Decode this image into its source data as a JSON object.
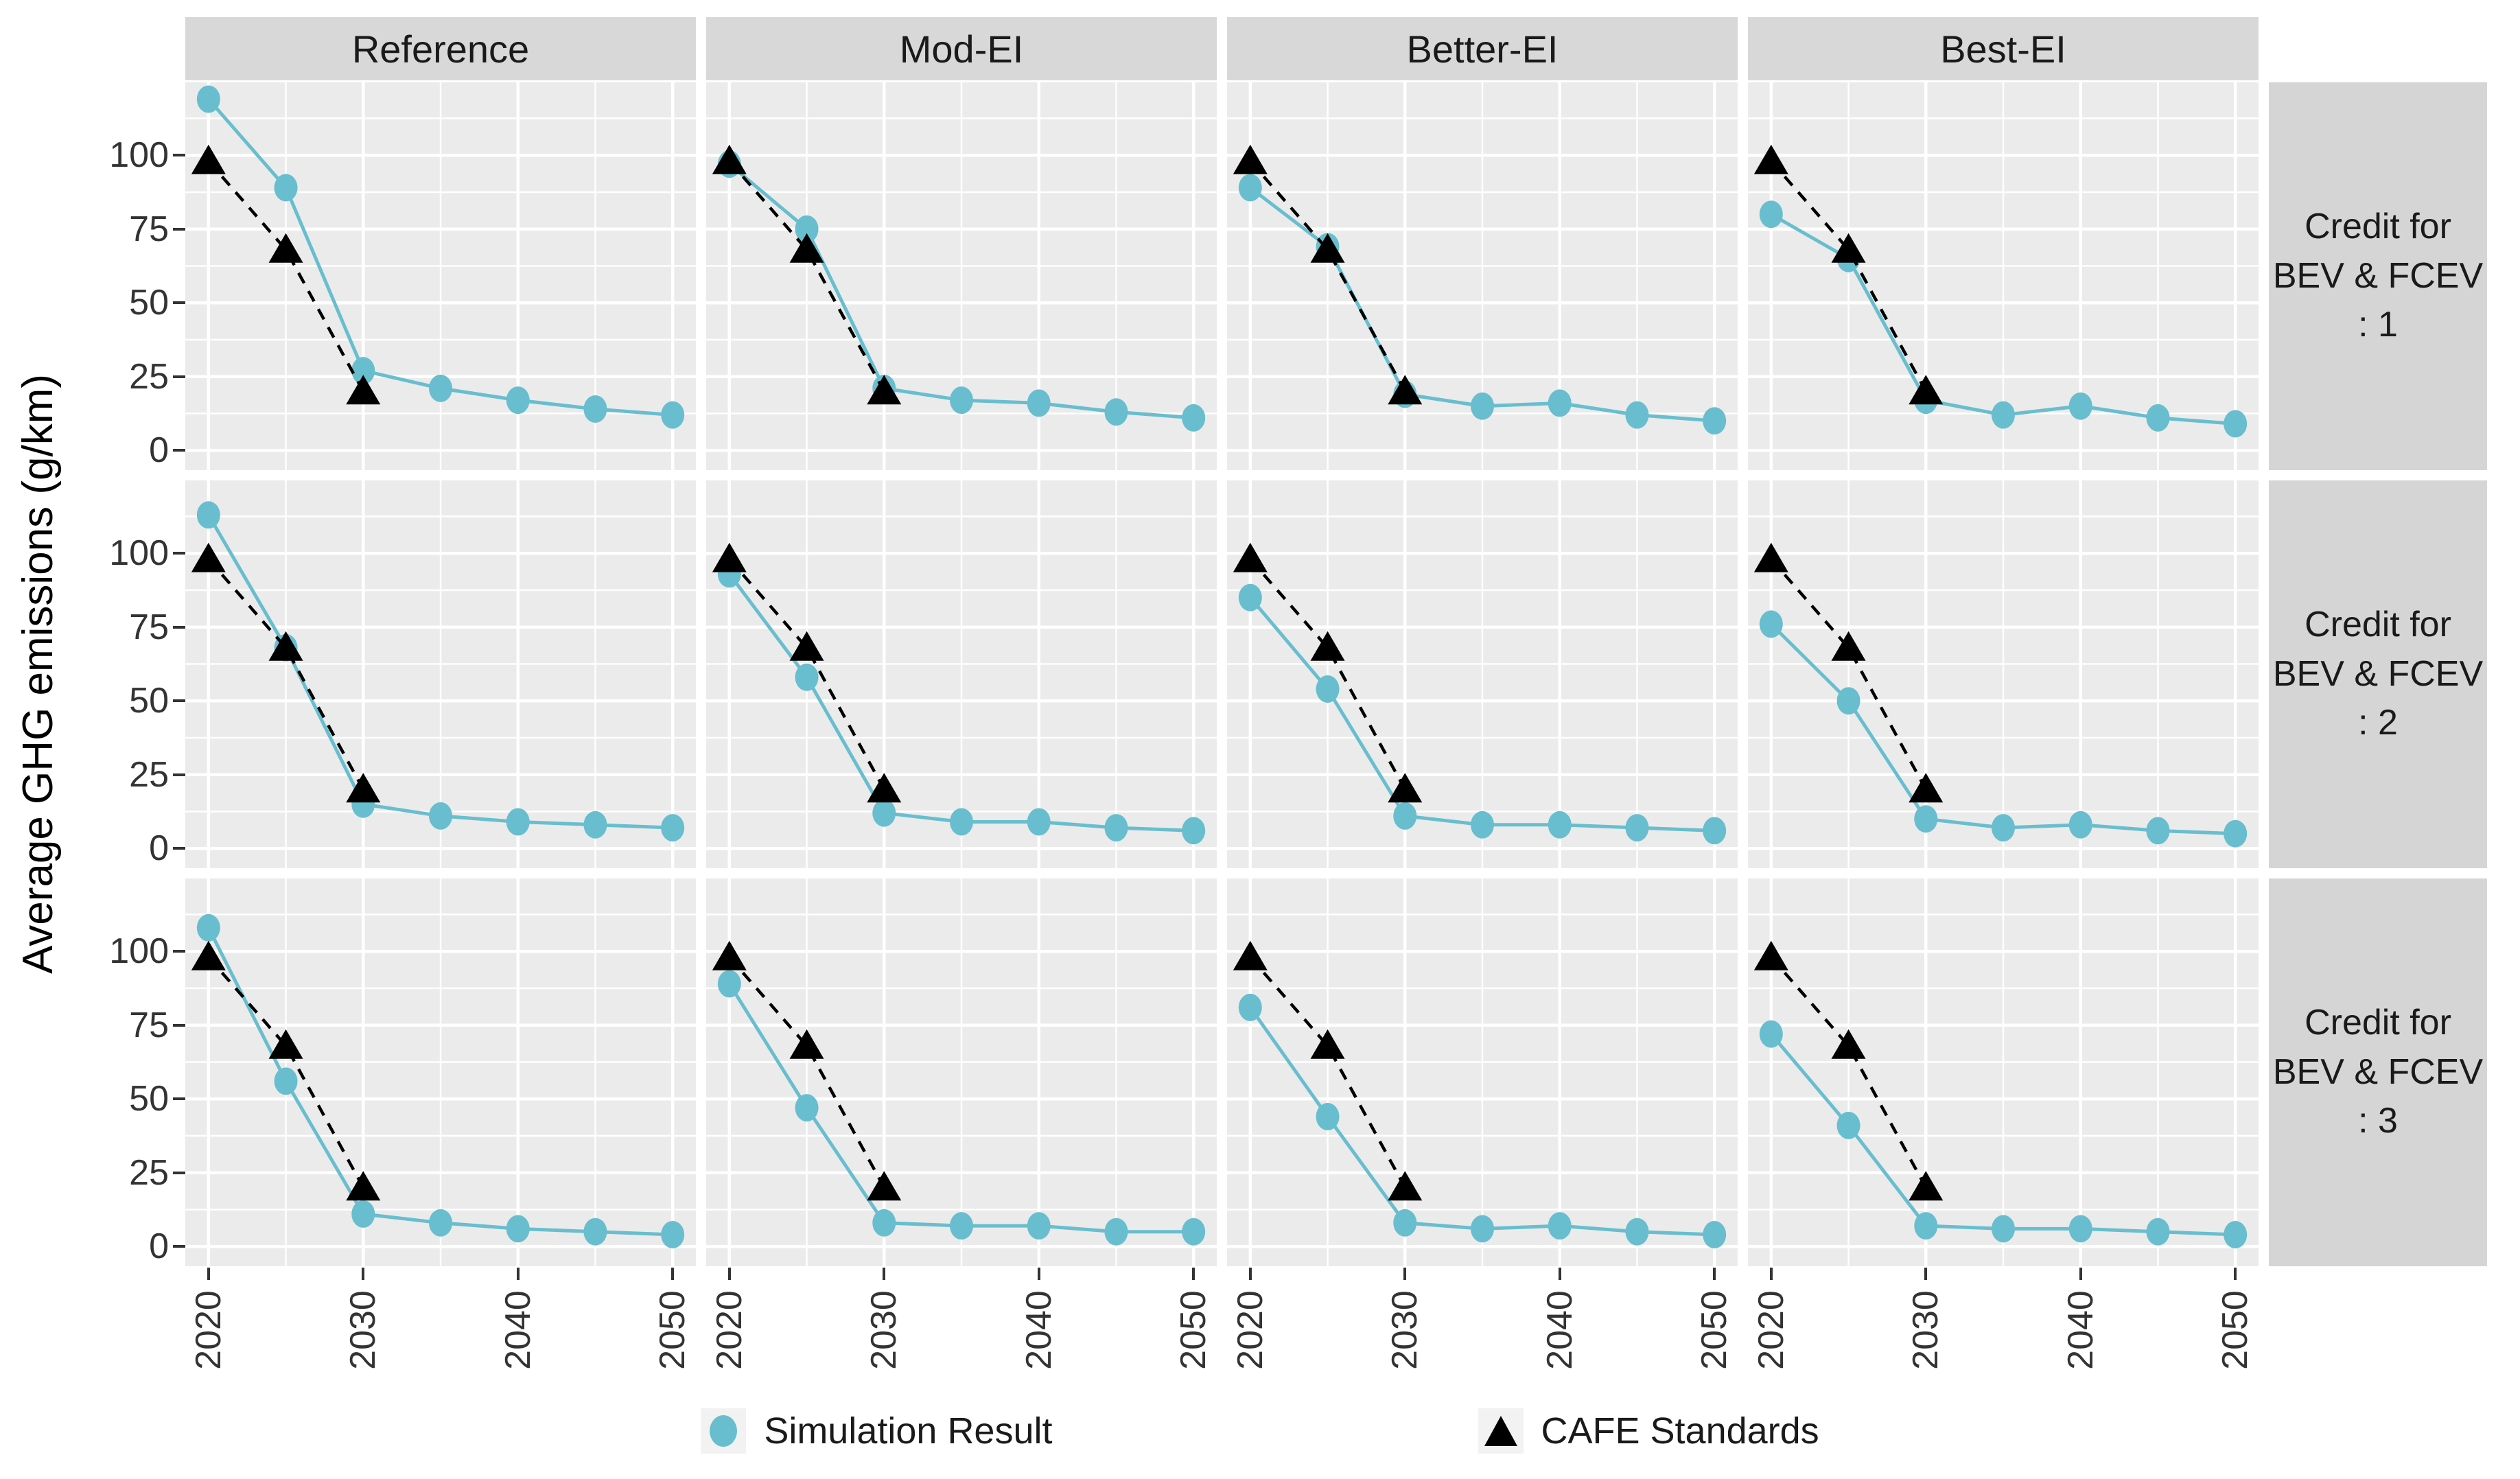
{
  "figure": {
    "y_axis_title": "Average GHG emissions (g/km)",
    "y_ticks": [
      100,
      75,
      50,
      25,
      0
    ],
    "x_ticks": [
      2020,
      2030,
      2040,
      2050
    ],
    "facet_columns": [
      "Reference",
      "Mod-EI",
      "Better-EI",
      "Best-EI"
    ],
    "facet_rows": [
      "Credit for\nBEV & FCEV\n: 1",
      "Credit for\nBEV & FCEV\n: 2",
      "Credit for\nBEV & FCEV\n: 3"
    ],
    "legend": [
      {
        "label": "Simulation Result",
        "marker": "circle-icon",
        "color": "#68BECE"
      },
      {
        "label": "CAFE Standards",
        "marker": "triangle-icon",
        "color": "#000000"
      }
    ],
    "colors": {
      "simulation": "#68BECE",
      "cafe": "#000000",
      "panel_bg": "#EBEBEB",
      "strip_bg": "#D8D8D8",
      "grid": "#FFFFFF",
      "axis_text": "#333333"
    }
  },
  "chart_data": {
    "type": "line",
    "title": "",
    "xlabel": "",
    "ylabel": "Average GHG emissions (g/km)",
    "x_simulation": [
      2020,
      2025,
      2030,
      2035,
      2040,
      2045,
      2050
    ],
    "x_cafe": [
      2020,
      2025,
      2030
    ],
    "x_range": [
      2018.5,
      2051.5
    ],
    "y_range": [
      -6.7,
      124.7
    ],
    "x_major_gridlines": [
      2020,
      2030,
      2040,
      2050
    ],
    "x_minor_gridlines": [
      2025,
      2035,
      2045
    ],
    "y_major_gridlines": [
      0,
      25,
      50,
      75,
      100
    ],
    "y_minor_gridlines": [
      12.5,
      37.5,
      62.5,
      87.5,
      112.5
    ],
    "cafe_standards": [
      98,
      68,
      20
    ],
    "panels": [
      {
        "row": "Credit for BEV & FCEV : 1",
        "col": "Reference",
        "simulation": [
          119,
          89,
          27,
          21,
          17,
          14,
          12
        ]
      },
      {
        "row": "Credit for BEV & FCEV : 1",
        "col": "Mod-EI",
        "simulation": [
          97,
          75,
          21,
          17,
          16,
          13,
          11
        ]
      },
      {
        "row": "Credit for BEV & FCEV : 1",
        "col": "Better-EI",
        "simulation": [
          89,
          69,
          19,
          15,
          16,
          12,
          10
        ]
      },
      {
        "row": "Credit for BEV & FCEV : 1",
        "col": "Best-EI",
        "simulation": [
          80,
          65,
          17,
          12,
          15,
          11,
          9
        ]
      },
      {
        "row": "Credit for BEV & FCEV : 2",
        "col": "Reference",
        "simulation": [
          113,
          68,
          15,
          11,
          9,
          8,
          7
        ]
      },
      {
        "row": "Credit for BEV & FCEV : 2",
        "col": "Mod-EI",
        "simulation": [
          93,
          58,
          12,
          9,
          9,
          7,
          6
        ]
      },
      {
        "row": "Credit for BEV & FCEV : 2",
        "col": "Better-EI",
        "simulation": [
          85,
          54,
          11,
          8,
          8,
          7,
          6
        ]
      },
      {
        "row": "Credit for BEV & FCEV : 2",
        "col": "Best-EI",
        "simulation": [
          76,
          50,
          10,
          7,
          8,
          6,
          5
        ]
      },
      {
        "row": "Credit for BEV & FCEV : 3",
        "col": "Reference",
        "simulation": [
          108,
          56,
          11,
          8,
          6,
          5,
          4
        ]
      },
      {
        "row": "Credit for BEV & FCEV : 3",
        "col": "Mod-EI",
        "simulation": [
          89,
          47,
          8,
          7,
          7,
          5,
          5
        ]
      },
      {
        "row": "Credit for BEV & FCEV : 3",
        "col": "Better-EI",
        "simulation": [
          81,
          44,
          8,
          6,
          7,
          5,
          4
        ]
      },
      {
        "row": "Credit for BEV & FCEV : 3",
        "col": "Best-EI",
        "simulation": [
          72,
          41,
          7,
          6,
          6,
          5,
          4
        ]
      }
    ]
  }
}
